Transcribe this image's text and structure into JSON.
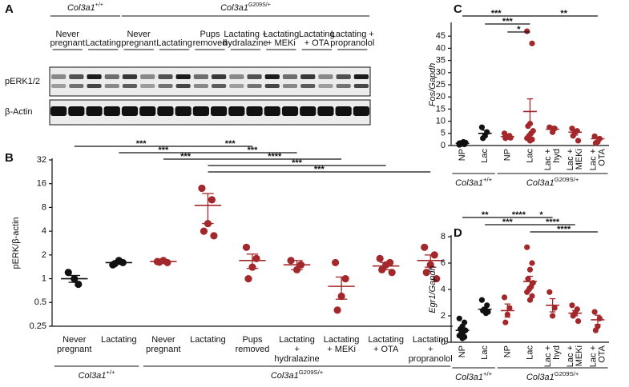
{
  "blot": {
    "panel": "A",
    "genotypes": [
      {
        "gene": "Col3a1",
        "allele": "+/+",
        "from": 0,
        "to": 1
      },
      {
        "gene": "Col3a1",
        "allele": "G209S/+",
        "from": 2,
        "to": 8
      }
    ],
    "lanes": [
      [
        "Never",
        "pregnant"
      ],
      [
        "Lactating"
      ],
      [
        "Never",
        "pregnant"
      ],
      [
        "Lactating"
      ],
      [
        "Pups",
        "removed"
      ],
      [
        "Lactating +",
        "hydralazine"
      ],
      [
        "Lactating",
        "+ MEKi"
      ],
      [
        "Lactating",
        "+ OTA"
      ],
      [
        "Lactating +",
        "propranolol"
      ]
    ],
    "rows": [
      "pERK1/2",
      "β-Actin"
    ]
  },
  "chart_data": [
    {
      "type": "dot",
      "panel": "B",
      "y_label": "pERK/β-actin",
      "log_base": 2,
      "ylim": [
        0.25,
        32
      ],
      "yticks": [
        0.25,
        0.5,
        1,
        2,
        4,
        8,
        16,
        32
      ],
      "categories": [
        [
          "Never",
          "pregnant"
        ],
        [
          "Lactating"
        ],
        [
          "Never",
          "pregnant"
        ],
        [
          "Lactating"
        ],
        [
          "Pups",
          "removed"
        ],
        [
          "Lactating",
          "+",
          "hydralazine"
        ],
        [
          "Lactating",
          "+ MEKi"
        ],
        [
          "Lactating",
          "+ OTA"
        ],
        [
          "Lactating",
          "+",
          "propranolol"
        ]
      ],
      "colors": [
        "#111111",
        "#111111",
        "#a3282c",
        "#a3282c",
        "#a3282c",
        "#a3282c",
        "#a3282c",
        "#a3282c",
        "#a3282c"
      ],
      "groups": [
        {
          "points": [
            1.2,
            0.85,
            1.0
          ],
          "mean": 1.0,
          "sem": 0.1
        },
        {
          "points": [
            1.5,
            1.6,
            1.7,
            1.55
          ],
          "mean": 1.6,
          "sem": 0.08
        },
        {
          "points": [
            1.65,
            1.6,
            1.7,
            1.62
          ],
          "mean": 1.65,
          "sem": 0.05
        },
        {
          "points": [
            14,
            10,
            5,
            4,
            3.5
          ],
          "mean": 8.5,
          "sem": 3.5
        },
        {
          "points": [
            2.5,
            1.8,
            1.4,
            1.0
          ],
          "mean": 1.7,
          "sem": 0.35
        },
        {
          "points": [
            1.7,
            1.5,
            1.3
          ],
          "mean": 1.5,
          "sem": 0.2
        },
        {
          "points": [
            1.6,
            1.0,
            0.6,
            0.4
          ],
          "mean": 0.8,
          "sem": 0.25
        },
        {
          "points": [
            1.8,
            1.6,
            1.5,
            1.3,
            1.2
          ],
          "mean": 1.45,
          "sem": 0.15
        },
        {
          "points": [
            2.5,
            2.0,
            1.5,
            1.2,
            1.0
          ],
          "mean": 1.7,
          "sem": 0.3
        }
      ],
      "genotypes": [
        {
          "gene": "Col3a1",
          "allele": "+/+",
          "from": 0,
          "to": 1
        },
        {
          "gene": "Col3a1",
          "allele": "G209S/+",
          "from": 2,
          "to": 8
        }
      ],
      "significance": [
        {
          "from": 0,
          "to": 3,
          "label": "***"
        },
        {
          "from": 1,
          "to": 3,
          "label": "***"
        },
        {
          "from": 2,
          "to": 3,
          "label": "***"
        },
        {
          "from": 3,
          "to": 4,
          "label": "***"
        },
        {
          "from": 3,
          "to": 5,
          "label": "***"
        },
        {
          "from": 3,
          "to": 6,
          "label": "****"
        },
        {
          "from": 3,
          "to": 7,
          "label": "***"
        },
        {
          "from": 3,
          "to": 8,
          "label": "***"
        }
      ]
    },
    {
      "type": "dot",
      "panel": "C",
      "y_label": "Fos/Gapdh",
      "ylim": [
        0,
        50
      ],
      "yticks": [
        0,
        5,
        10,
        15,
        20,
        25,
        30,
        35,
        40,
        45
      ],
      "categories": [
        [
          "NP"
        ],
        [
          "Lac"
        ],
        [
          "NP"
        ],
        [
          "Lac"
        ],
        [
          "Lac +",
          "hyd"
        ],
        [
          "Lac +",
          "MEKi"
        ],
        [
          "Lac +",
          "OTA"
        ]
      ],
      "colors": [
        "#111111",
        "#111111",
        "#a3282c",
        "#a3282c",
        "#a3282c",
        "#a3282c",
        "#a3282c"
      ],
      "groups": [
        {
          "points": [
            0.3,
            0.5,
            0.8,
            1.0,
            1.2,
            1.5,
            0.6,
            0.9
          ],
          "mean": 0.9,
          "sem": 0.2
        },
        {
          "points": [
            7.5,
            5.5,
            4,
            3
          ],
          "mean": 5,
          "sem": 1.3
        },
        {
          "points": [
            5,
            4,
            3.5,
            3,
            3.2,
            3.8
          ],
          "mean": 3.7,
          "sem": 0.4
        },
        {
          "points": [
            47,
            42,
            9,
            8,
            6,
            5,
            4,
            3,
            2.5,
            2
          ],
          "mean": 14,
          "sem": 5.2
        },
        {
          "points": [
            7.5,
            7,
            5.5
          ],
          "mean": 6.7,
          "sem": 1.2
        },
        {
          "points": [
            7,
            6,
            5.5,
            4,
            2
          ],
          "mean": 5.5,
          "sem": 1.2
        },
        {
          "points": [
            3.8,
            2.8,
            1.5,
            1
          ],
          "mean": 2.8,
          "sem": 0.7
        }
      ],
      "genotypes": [
        {
          "gene": "Col3a1",
          "allele": "+/+",
          "from": 0,
          "to": 1
        },
        {
          "gene": "Col3a1",
          "allele": "G209S/+",
          "from": 2,
          "to": 6
        }
      ],
      "significance": [
        {
          "from": 0,
          "to": 3,
          "label": "***"
        },
        {
          "from": 1,
          "to": 3,
          "label": "***"
        },
        {
          "from": 2,
          "to": 3,
          "label": "*"
        },
        {
          "from": 3,
          "to": 6,
          "label": "**"
        }
      ]
    },
    {
      "type": "dot",
      "panel": "D",
      "y_label": "Egr1/Gapdh",
      "ylim": [
        0,
        8
      ],
      "yticks": [
        0,
        2,
        4,
        6,
        8
      ],
      "categories": [
        [
          "NP"
        ],
        [
          "Lac"
        ],
        [
          "NP"
        ],
        [
          "Lac"
        ],
        [
          "Lac +",
          "hyd"
        ],
        [
          "Lac +",
          "MEKi"
        ],
        [
          "Lac +",
          "OTA"
        ]
      ],
      "colors": [
        "#111111",
        "#111111",
        "#a3282c",
        "#a3282c",
        "#a3282c",
        "#a3282c",
        "#a3282c"
      ],
      "groups": [
        {
          "points": [
            1.8,
            1.5,
            1.2,
            1.0,
            0.9,
            0.8,
            0.7,
            0.5,
            0.4,
            0.3
          ],
          "mean": 0.9,
          "sem": 0.15
        },
        {
          "points": [
            3.2,
            2.8,
            2.5,
            2.4,
            2.3,
            2.2
          ],
          "mean": 2.5,
          "sem": 0.15
        },
        {
          "points": [
            3.4,
            2.6,
            2.1,
            1.5
          ],
          "mean": 2.4,
          "sem": 0.5
        },
        {
          "points": [
            7.2,
            6.0,
            5.5,
            4.8,
            4.5,
            4.2,
            4.0,
            3.8,
            3.5,
            3.2
          ],
          "mean": 4.6,
          "sem": 0.4
        },
        {
          "points": [
            3.8,
            2.6,
            2.0
          ],
          "mean": 2.8,
          "sem": 0.5
        },
        {
          "points": [
            2.8,
            2.5,
            2.2,
            2.0,
            1.6
          ],
          "mean": 2.2,
          "sem": 0.2
        },
        {
          "points": [
            2.3,
            1.8,
            1.2,
            0.9
          ],
          "mean": 1.7,
          "sem": 0.35
        }
      ],
      "genotypes": [
        {
          "gene": "Col3a1",
          "allele": "+/+",
          "from": 0,
          "to": 1
        },
        {
          "gene": "Col3a1",
          "allele": "G209S/+",
          "from": 2,
          "to": 6
        }
      ],
      "significance": [
        {
          "from": 0,
          "to": 2,
          "label": "**"
        },
        {
          "from": 1,
          "to": 3,
          "label": "***"
        },
        {
          "from": 2,
          "to": 3,
          "label": "****"
        },
        {
          "from": 3,
          "to": 4,
          "label": "*"
        },
        {
          "from": 3,
          "to": 5,
          "label": "****"
        },
        {
          "from": 3,
          "to": 6,
          "label": "****"
        }
      ]
    }
  ]
}
